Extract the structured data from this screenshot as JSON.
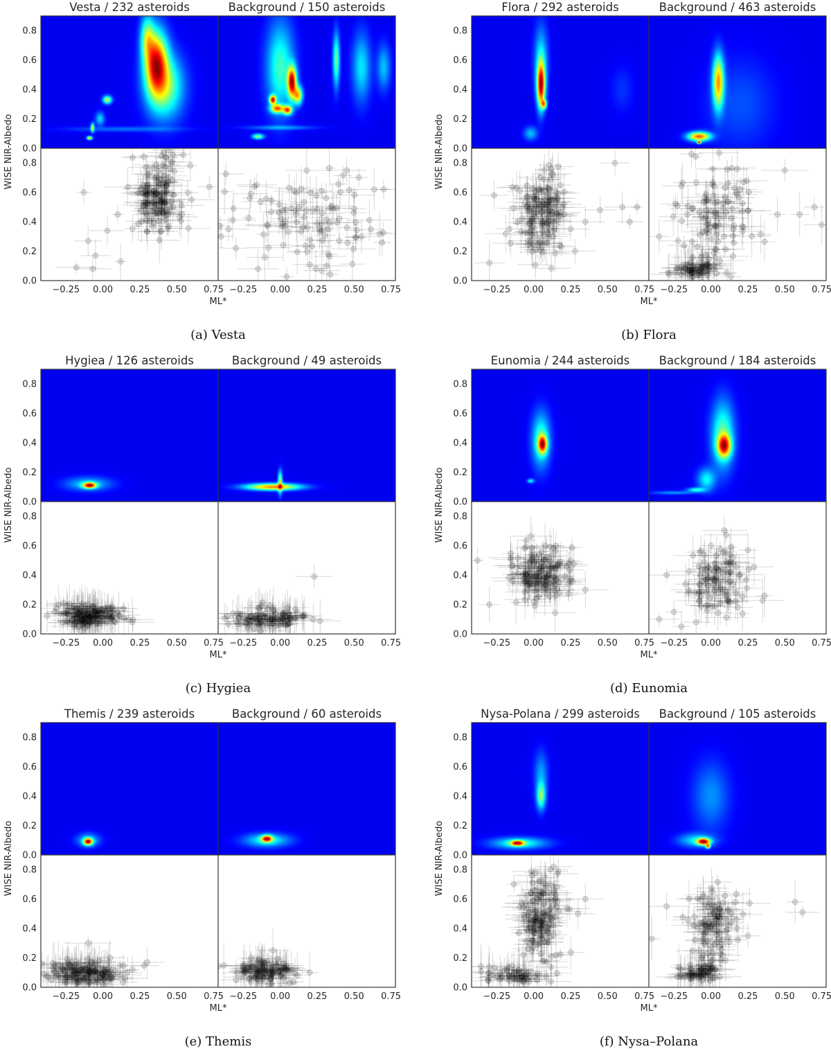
{
  "axes": {
    "xlabel": "ML*",
    "ylabel": "WISE NIR-Albedo",
    "x_tick_labels": [
      "−0.25",
      "0.00",
      "0.25",
      "0.50",
      "0.75"
    ],
    "y_tick_labels": [
      "0.0",
      "0.2",
      "0.4",
      "0.6",
      "0.8"
    ],
    "xlim": [
      -0.42,
      0.78
    ],
    "ylim": [
      0.0,
      0.9
    ]
  },
  "colors": {
    "heatmap_colormap": "jet",
    "heatmap_background": "#00007f",
    "scatter_marker": "#000000"
  },
  "chart_data": [
    {
      "type": "heatmap",
      "caption": "(a) Vesta",
      "family_title": "Vesta / 232 asteroids",
      "background_title": "Background / 150 asteroids",
      "family_kde_peaks": [
        {
          "x": 0.36,
          "y": 0.58,
          "sx": 0.05,
          "sy": 0.14,
          "w": 1.0
        },
        {
          "x": 0.42,
          "y": 0.42,
          "sx": 0.08,
          "sy": 0.14,
          "w": 0.5
        },
        {
          "x": 0.3,
          "y": 0.75,
          "sx": 0.03,
          "sy": 0.1,
          "w": 0.45
        },
        {
          "x": 0.03,
          "y": 0.33,
          "sx": 0.02,
          "sy": 0.018,
          "w": 0.55
        },
        {
          "x": -0.02,
          "y": 0.2,
          "sx": 0.02,
          "sy": 0.03,
          "w": 0.25
        },
        {
          "x": -0.07,
          "y": 0.14,
          "sx": 0.008,
          "sy": 0.02,
          "w": 0.55
        },
        {
          "x": -0.09,
          "y": 0.07,
          "sx": 0.012,
          "sy": 0.008,
          "w": 0.7
        },
        {
          "x": 0.15,
          "y": 0.13,
          "sx": 0.25,
          "sy": 0.012,
          "w": 0.12
        }
      ],
      "background_kde_peaks": [
        {
          "x": 0.08,
          "y": 0.45,
          "sx": 0.02,
          "sy": 0.07,
          "w": 1.0
        },
        {
          "x": -0.05,
          "y": 0.33,
          "sx": 0.015,
          "sy": 0.02,
          "w": 0.9
        },
        {
          "x": -0.02,
          "y": 0.27,
          "sx": 0.03,
          "sy": 0.02,
          "w": 0.75
        },
        {
          "x": 0.05,
          "y": 0.26,
          "sx": 0.02,
          "sy": 0.02,
          "w": 0.8
        },
        {
          "x": 0.12,
          "y": 0.36,
          "sx": 0.02,
          "sy": 0.04,
          "w": 0.65
        },
        {
          "x": 0.0,
          "y": 0.55,
          "sx": 0.06,
          "sy": 0.2,
          "w": 0.35
        },
        {
          "x": 0.38,
          "y": 0.6,
          "sx": 0.015,
          "sy": 0.12,
          "w": 0.4
        },
        {
          "x": 0.55,
          "y": 0.55,
          "sx": 0.04,
          "sy": 0.15,
          "w": 0.25
        },
        {
          "x": 0.7,
          "y": 0.55,
          "sx": 0.03,
          "sy": 0.1,
          "w": 0.2
        },
        {
          "x": -0.15,
          "y": 0.08,
          "sx": 0.025,
          "sy": 0.012,
          "w": 0.45
        },
        {
          "x": 0.0,
          "y": 0.14,
          "sx": 0.15,
          "sy": 0.01,
          "w": 0.15
        }
      ],
      "family_scatter_cluster": {
        "x": 0.37,
        "y": 0.58,
        "sx": 0.09,
        "sy": 0.15
      },
      "family_scatter_outliers": [
        [
          -0.13,
          0.6
        ],
        [
          -0.1,
          0.27
        ],
        [
          -0.05,
          0.17
        ],
        [
          0.03,
          0.34
        ],
        [
          -0.07,
          0.08
        ],
        [
          -0.18,
          0.09
        ],
        [
          0.12,
          0.13
        ],
        [
          0.6,
          0.55
        ],
        [
          0.1,
          0.45
        ]
      ],
      "background_scatter_cluster": {
        "x": 0.2,
        "y": 0.42,
        "sx": 0.25,
        "sy": 0.18
      },
      "background_scatter_outliers": [
        [
          -0.15,
          0.08
        ],
        [
          -0.3,
          0.22
        ],
        [
          -0.35,
          0.35
        ],
        [
          0.7,
          0.62
        ],
        [
          0.55,
          0.3
        ],
        [
          0.45,
          0.75
        ]
      ]
    },
    {
      "type": "heatmap",
      "caption": "(b) Flora",
      "family_title": "Flora / 292 asteroids",
      "background_title": "Background / 463 asteroids",
      "family_kde_peaks": [
        {
          "x": 0.05,
          "y": 0.43,
          "sx": 0.018,
          "sy": 0.1,
          "w": 1.0
        },
        {
          "x": 0.07,
          "y": 0.3,
          "sx": 0.012,
          "sy": 0.02,
          "w": 0.6
        },
        {
          "x": 0.05,
          "y": 0.6,
          "sx": 0.03,
          "sy": 0.15,
          "w": 0.25
        },
        {
          "x": -0.02,
          "y": 0.1,
          "sx": 0.03,
          "sy": 0.03,
          "w": 0.2
        },
        {
          "x": 0.6,
          "y": 0.4,
          "sx": 0.05,
          "sy": 0.1,
          "w": 0.05
        }
      ],
      "background_kde_peaks": [
        {
          "x": 0.05,
          "y": 0.45,
          "sx": 0.025,
          "sy": 0.12,
          "w": 0.7
        },
        {
          "x": -0.08,
          "y": 0.08,
          "sx": 0.05,
          "sy": 0.02,
          "w": 0.8
        },
        {
          "x": -0.08,
          "y": 0.04,
          "sx": 0.008,
          "sy": 0.006,
          "w": 1.0
        },
        {
          "x": 0.2,
          "y": 0.3,
          "sx": 0.15,
          "sy": 0.2,
          "w": 0.08
        }
      ],
      "family_scatter_cluster": {
        "x": 0.05,
        "y": 0.45,
        "sx": 0.1,
        "sy": 0.15
      },
      "family_scatter_outliers": [
        [
          0.55,
          0.8
        ],
        [
          0.6,
          0.5
        ],
        [
          0.65,
          0.4
        ],
        [
          0.45,
          0.48
        ],
        [
          0.7,
          0.5
        ],
        [
          -0.3,
          0.12
        ],
        [
          0.35,
          0.4
        ],
        [
          0.25,
          0.35
        ]
      ],
      "background_scatter_cluster": {
        "x": 0.05,
        "y": 0.42,
        "sx": 0.13,
        "sy": 0.17
      },
      "background_scatter_cluster2": {
        "x": -0.1,
        "y": 0.07,
        "sx": 0.07,
        "sy": 0.025
      },
      "background_scatter_outliers": [
        [
          0.6,
          0.45
        ],
        [
          0.7,
          0.5
        ],
        [
          0.5,
          0.75
        ],
        [
          0.45,
          0.45
        ],
        [
          -0.35,
          0.3
        ],
        [
          0.75,
          0.38
        ]
      ]
    },
    {
      "type": "heatmap",
      "caption": "(c) Hygiea",
      "family_title": "Hygiea / 126 asteroids",
      "background_title": "Background / 49 asteroids",
      "family_kde_peaks": [
        {
          "x": -0.09,
          "y": 0.11,
          "sx": 0.03,
          "sy": 0.013,
          "w": 1.0
        },
        {
          "x": -0.1,
          "y": 0.12,
          "sx": 0.1,
          "sy": 0.03,
          "w": 0.25
        }
      ],
      "background_kde_peaks": [
        {
          "x": -0.05,
          "y": 0.1,
          "sx": 0.12,
          "sy": 0.015,
          "w": 0.18
        },
        {
          "x": 0.0,
          "y": 0.13,
          "sx": 0.01,
          "sy": 0.05,
          "w": 0.12
        }
      ],
      "family_scatter_cluster": {
        "x": -0.1,
        "y": 0.12,
        "sx": 0.1,
        "sy": 0.04
      },
      "family_scatter_outliers": [
        [
          0.2,
          0.08
        ],
        [
          -0.3,
          0.2
        ],
        [
          0.1,
          0.15
        ]
      ],
      "background_scatter_cluster": {
        "x": -0.08,
        "y": 0.1,
        "sx": 0.12,
        "sy": 0.04
      },
      "background_scatter_outliers": [
        [
          0.23,
          0.39
        ],
        [
          -0.35,
          0.07
        ],
        [
          0.05,
          0.18
        ]
      ]
    },
    {
      "type": "heatmap",
      "caption": "(d) Eunomia",
      "family_title": "Eunomia / 244 asteroids",
      "background_title": "Background / 184 asteroids",
      "family_kde_peaks": [
        {
          "x": 0.06,
          "y": 0.39,
          "sx": 0.02,
          "sy": 0.04,
          "w": 1.0
        },
        {
          "x": 0.05,
          "y": 0.42,
          "sx": 0.04,
          "sy": 0.12,
          "w": 0.45
        },
        {
          "x": -0.02,
          "y": 0.14,
          "sx": 0.015,
          "sy": 0.01,
          "w": 0.35
        }
      ],
      "background_kde_peaks": [
        {
          "x": 0.09,
          "y": 0.38,
          "sx": 0.03,
          "sy": 0.05,
          "w": 1.0
        },
        {
          "x": 0.08,
          "y": 0.45,
          "sx": 0.05,
          "sy": 0.15,
          "w": 0.5
        },
        {
          "x": -0.1,
          "y": 0.08,
          "sx": 0.04,
          "sy": 0.01,
          "w": 0.4
        },
        {
          "x": -0.03,
          "y": 0.15,
          "sx": 0.04,
          "sy": 0.05,
          "w": 0.35
        },
        {
          "x": -0.25,
          "y": 0.06,
          "sx": 0.1,
          "sy": 0.008,
          "w": 0.2
        }
      ],
      "family_scatter_cluster": {
        "x": 0.05,
        "y": 0.4,
        "sx": 0.1,
        "sy": 0.1
      },
      "family_scatter_outliers": [
        [
          -0.38,
          0.5
        ],
        [
          -0.3,
          0.2
        ],
        [
          0.35,
          0.3
        ],
        [
          0.25,
          0.5
        ],
        [
          0.15,
          0.6
        ]
      ],
      "background_scatter_cluster": {
        "x": 0.07,
        "y": 0.38,
        "sx": 0.1,
        "sy": 0.12
      },
      "background_scatter_outliers": [
        [
          -0.2,
          0.05
        ],
        [
          -0.1,
          0.08
        ],
        [
          -0.35,
          0.1
        ],
        [
          -0.3,
          0.4
        ],
        [
          0.0,
          0.6
        ],
        [
          -0.15,
          0.3
        ],
        [
          -0.25,
          0.15
        ]
      ]
    },
    {
      "type": "heatmap",
      "caption": "(e) Themis",
      "family_title": "Themis / 239 asteroids",
      "background_title": "Background / 60 asteroids",
      "family_kde_peaks": [
        {
          "x": -0.1,
          "y": 0.09,
          "sx": 0.02,
          "sy": 0.015,
          "w": 1.0
        },
        {
          "x": -0.1,
          "y": 0.1,
          "sx": 0.05,
          "sy": 0.03,
          "w": 0.25
        }
      ],
      "background_kde_peaks": [
        {
          "x": -0.09,
          "y": 0.11,
          "sx": 0.025,
          "sy": 0.015,
          "w": 1.0
        },
        {
          "x": -0.09,
          "y": 0.1,
          "sx": 0.1,
          "sy": 0.03,
          "w": 0.35
        }
      ],
      "family_scatter_cluster": {
        "x": -0.12,
        "y": 0.1,
        "sx": 0.12,
        "sy": 0.04
      },
      "family_scatter_outliers": [
        [
          0.3,
          0.17
        ],
        [
          0.2,
          0.12
        ],
        [
          -0.1,
          0.3
        ],
        [
          -0.35,
          0.05
        ]
      ],
      "background_scatter_cluster": {
        "x": -0.1,
        "y": 0.11,
        "sx": 0.1,
        "sy": 0.04
      },
      "background_scatter_outliers": [
        [
          0.2,
          0.1
        ],
        [
          -0.05,
          0.25
        ],
        [
          -0.3,
          0.05
        ]
      ]
    },
    {
      "type": "heatmap",
      "caption": "(f) Nysa–Polana",
      "family_title": "Nysa-Polana / 299 asteroids",
      "background_title": "Background / 105 asteroids",
      "family_kde_peaks": [
        {
          "x": -0.11,
          "y": 0.08,
          "sx": 0.03,
          "sy": 0.012,
          "w": 1.0
        },
        {
          "x": -0.1,
          "y": 0.08,
          "sx": 0.12,
          "sy": 0.025,
          "w": 0.4
        },
        {
          "x": 0.05,
          "y": 0.4,
          "sx": 0.02,
          "sy": 0.06,
          "w": 0.5
        },
        {
          "x": 0.05,
          "y": 0.55,
          "sx": 0.03,
          "sy": 0.1,
          "w": 0.2
        }
      ],
      "background_kde_peaks": [
        {
          "x": -0.05,
          "y": 0.09,
          "sx": 0.03,
          "sy": 0.015,
          "w": 0.75
        },
        {
          "x": -0.02,
          "y": 0.06,
          "sx": 0.01,
          "sy": 0.01,
          "w": 0.6
        },
        {
          "x": -0.1,
          "y": 0.1,
          "sx": 0.08,
          "sy": 0.03,
          "w": 0.2
        },
        {
          "x": 0.0,
          "y": 0.4,
          "sx": 0.08,
          "sy": 0.15,
          "w": 0.12
        }
      ],
      "family_scatter_cluster": {
        "x": 0.05,
        "y": 0.45,
        "sx": 0.07,
        "sy": 0.15
      },
      "family_scatter_cluster2": {
        "x": -0.15,
        "y": 0.08,
        "sx": 0.12,
        "sy": 0.03
      },
      "family_scatter_outliers": [
        [
          0.3,
          0.5
        ],
        [
          0.35,
          0.6
        ],
        [
          -0.3,
          0.1
        ]
      ],
      "background_scatter_cluster": {
        "x": 0.02,
        "y": 0.4,
        "sx": 0.08,
        "sy": 0.14
      },
      "background_scatter_cluster2": {
        "x": -0.1,
        "y": 0.1,
        "sx": 0.06,
        "sy": 0.03
      },
      "background_scatter_outliers": [
        [
          0.57,
          0.58
        ],
        [
          0.62,
          0.51
        ],
        [
          -0.3,
          0.55
        ],
        [
          0.25,
          0.35
        ],
        [
          -0.4,
          0.33
        ]
      ]
    }
  ]
}
